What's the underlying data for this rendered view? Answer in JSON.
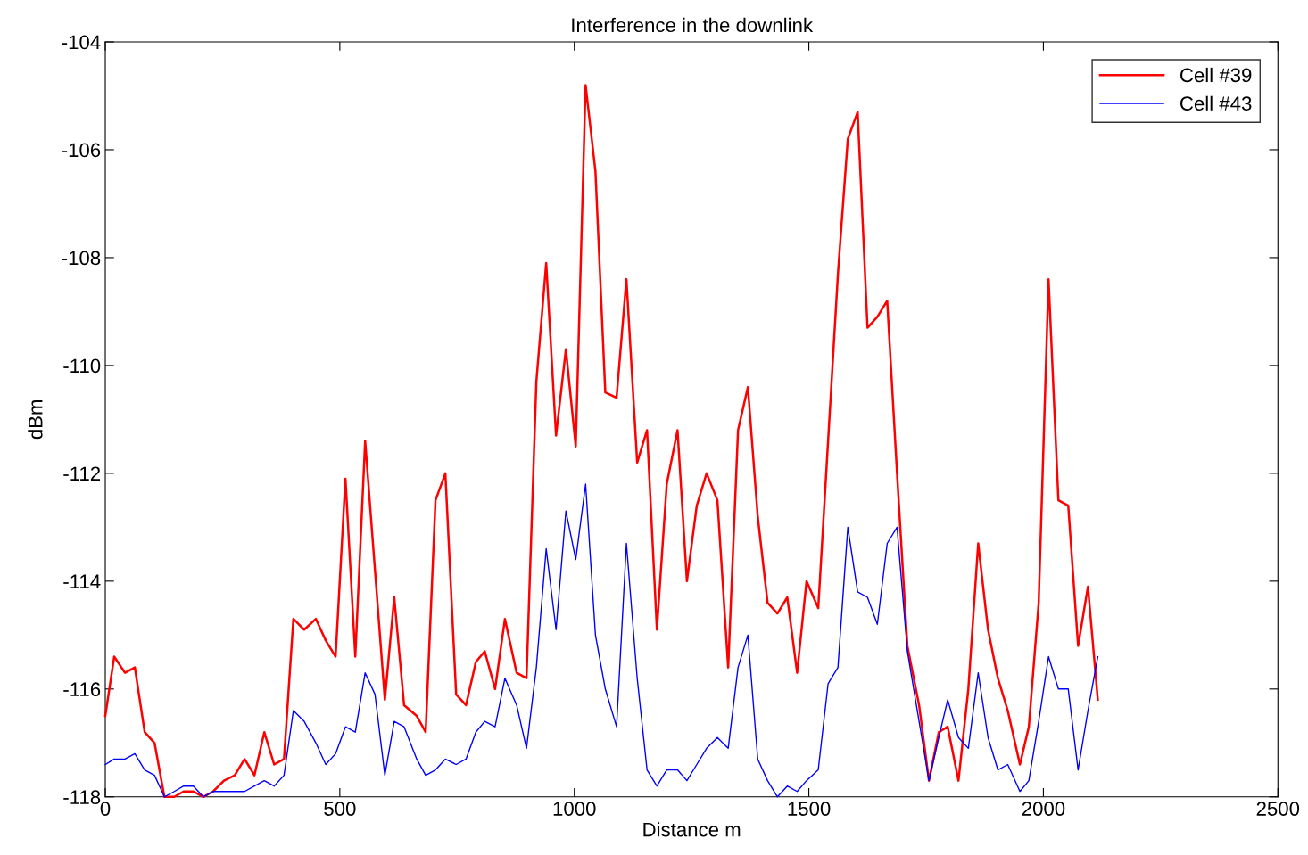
{
  "chart_data": {
    "type": "line",
    "title": "Interference in the downlink",
    "xlabel": "Distance m",
    "ylabel": "dBm",
    "x": [
      0,
      19,
      42,
      63,
      84,
      105,
      126,
      147,
      167,
      188,
      209,
      230,
      253,
      276,
      297,
      318,
      339,
      360,
      381,
      401,
      424,
      449,
      470,
      491,
      512,
      533,
      554,
      575,
      596,
      616,
      637,
      664,
      683,
      704,
      725,
      748,
      769,
      790,
      809,
      831,
      852,
      877,
      898,
      919,
      940,
      961,
      982,
      1003,
      1024,
      1045,
      1066,
      1090,
      1111,
      1134,
      1155,
      1176,
      1197,
      1220,
      1240,
      1261,
      1282,
      1305,
      1328,
      1349,
      1370,
      1391,
      1412,
      1433,
      1454,
      1475,
      1495,
      1520,
      1541,
      1562,
      1583,
      1604,
      1625,
      1646,
      1667,
      1688,
      1710,
      1735,
      1756,
      1777,
      1796,
      1819,
      1840,
      1861,
      1882,
      1903,
      1924,
      1950,
      1969,
      1990,
      2011,
      2032,
      2053,
      2074,
      2095,
      2116
    ],
    "series": [
      {
        "name": "Cell #39",
        "color": "#ff0000",
        "values": [
          -116.5,
          -115.4,
          -115.7,
          -115.6,
          -116.8,
          -117.0,
          -118.0,
          -118.0,
          -117.9,
          -117.9,
          -118.0,
          -117.9,
          -117.7,
          -117.6,
          -117.3,
          -117.6,
          -116.8,
          -117.4,
          -117.3,
          -114.7,
          -114.9,
          -114.7,
          -115.1,
          -115.4,
          -112.1,
          -115.4,
          -111.4,
          -113.8,
          -116.2,
          -114.3,
          -116.3,
          -116.5,
          -116.8,
          -112.5,
          -112.0,
          -116.1,
          -116.3,
          -115.5,
          -115.3,
          -116.0,
          -114.7,
          -115.7,
          -115.8,
          -110.3,
          -108.1,
          -111.3,
          -109.7,
          -111.5,
          -104.8,
          -106.4,
          -110.5,
          -110.6,
          -108.4,
          -111.8,
          -111.2,
          -114.9,
          -112.2,
          -111.2,
          -114.0,
          -112.6,
          -112.0,
          -112.5,
          -115.6,
          -111.2,
          -110.4,
          -112.8,
          -114.4,
          -114.6,
          -114.3,
          -115.7,
          -114.0,
          -114.5,
          -111.4,
          -108.3,
          -105.8,
          -105.3,
          -109.3,
          -109.1,
          -108.8,
          -112.0,
          -115.2,
          -116.3,
          -117.7,
          -116.8,
          -116.7,
          -117.7,
          -116.0,
          -113.3,
          -114.9,
          -115.8,
          -116.4,
          -117.4,
          -116.7,
          -114.4,
          -108.4,
          -112.5,
          -112.6,
          -115.2,
          -114.1,
          -116.2
        ]
      },
      {
        "name": "Cell #43",
        "color": "#0000ff",
        "values": [
          -117.4,
          -117.3,
          -117.3,
          -117.2,
          -117.5,
          -117.6,
          -118.0,
          -117.9,
          -117.8,
          -117.8,
          -118.0,
          -117.9,
          -117.9,
          -117.9,
          -117.9,
          -117.8,
          -117.7,
          -117.8,
          -117.6,
          -116.4,
          -116.6,
          -117.0,
          -117.4,
          -117.2,
          -116.7,
          -116.8,
          -115.7,
          -116.1,
          -117.6,
          -116.6,
          -116.7,
          -117.3,
          -117.6,
          -117.5,
          -117.3,
          -117.4,
          -117.3,
          -116.8,
          -116.6,
          -116.7,
          -115.8,
          -116.3,
          -117.1,
          -115.6,
          -113.4,
          -114.9,
          -112.7,
          -113.6,
          -112.2,
          -115.0,
          -116.0,
          -116.7,
          -113.3,
          -115.8,
          -117.5,
          -117.8,
          -117.5,
          -117.5,
          -117.7,
          -117.4,
          -117.1,
          -116.9,
          -117.1,
          -115.6,
          -115.0,
          -117.3,
          -117.7,
          -118.0,
          -117.8,
          -117.9,
          -117.7,
          -117.5,
          -115.9,
          -115.6,
          -113.0,
          -114.2,
          -114.3,
          -114.8,
          -113.3,
          -113.0,
          -115.3,
          -116.6,
          -117.7,
          -116.9,
          -116.2,
          -116.9,
          -117.1,
          -115.7,
          -116.9,
          -117.5,
          -117.4,
          -117.9,
          -117.7,
          -116.6,
          -115.4,
          -116.0,
          -116.0,
          -117.5,
          -116.4,
          -115.4
        ]
      }
    ],
    "xlim": [
      0,
      2500
    ],
    "xticks": [
      0,
      500,
      1000,
      1500,
      2000,
      2500
    ],
    "ylim": [
      -118,
      -104
    ],
    "yticks": [
      -118,
      -116,
      -114,
      -112,
      -110,
      -108,
      -106,
      -104
    ],
    "grid": false,
    "legend": "top right",
    "marker": "none",
    "line_style": "solid"
  }
}
